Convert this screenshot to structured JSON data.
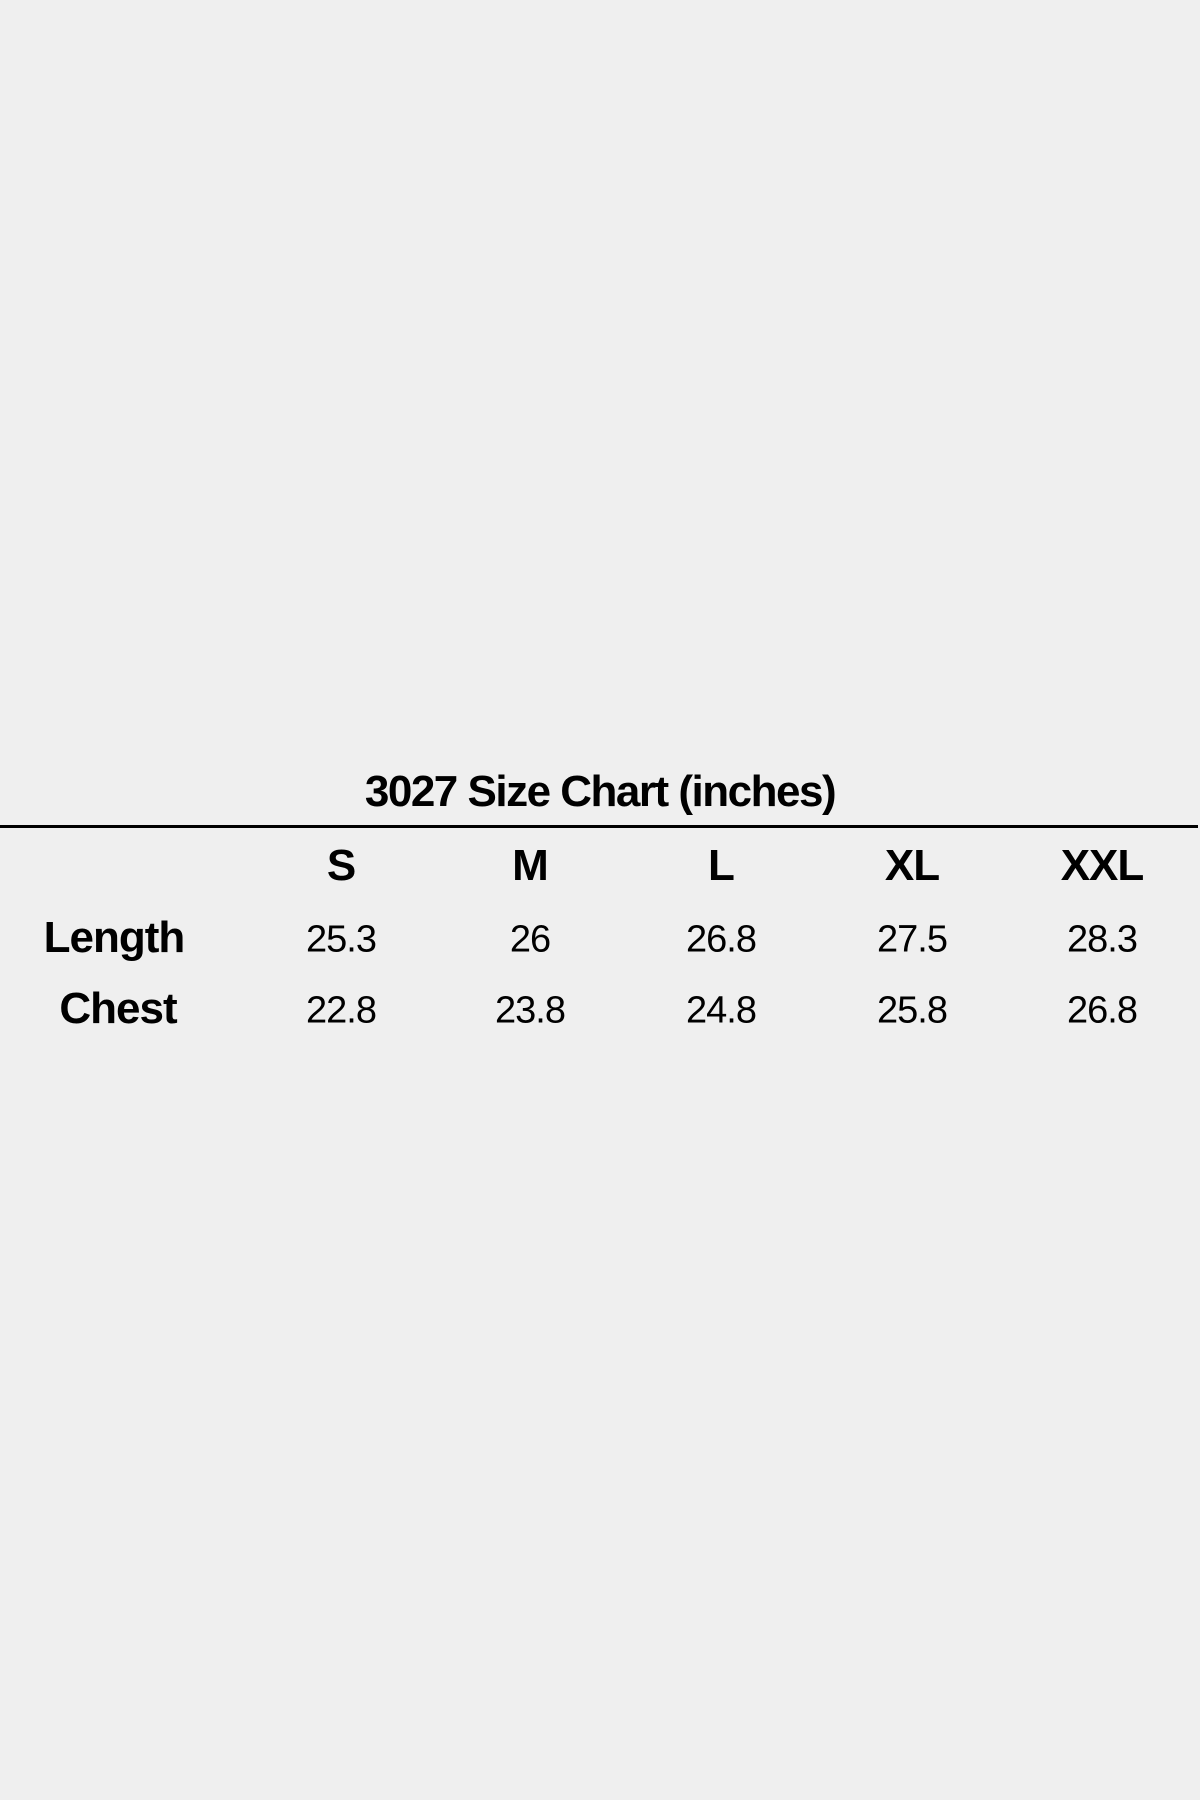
{
  "title": "3027 Size Chart (inches)",
  "sizes": [
    "S",
    "M",
    "L",
    "XL",
    "XXL"
  ],
  "rows": [
    {
      "label": "Length",
      "values": [
        "25.3",
        "26",
        "26.8",
        "27.5",
        "28.3"
      ]
    },
    {
      "label": "Chest",
      "values": [
        "22.8",
        "23.8",
        "24.8",
        "25.8",
        "26.8"
      ]
    }
  ]
}
